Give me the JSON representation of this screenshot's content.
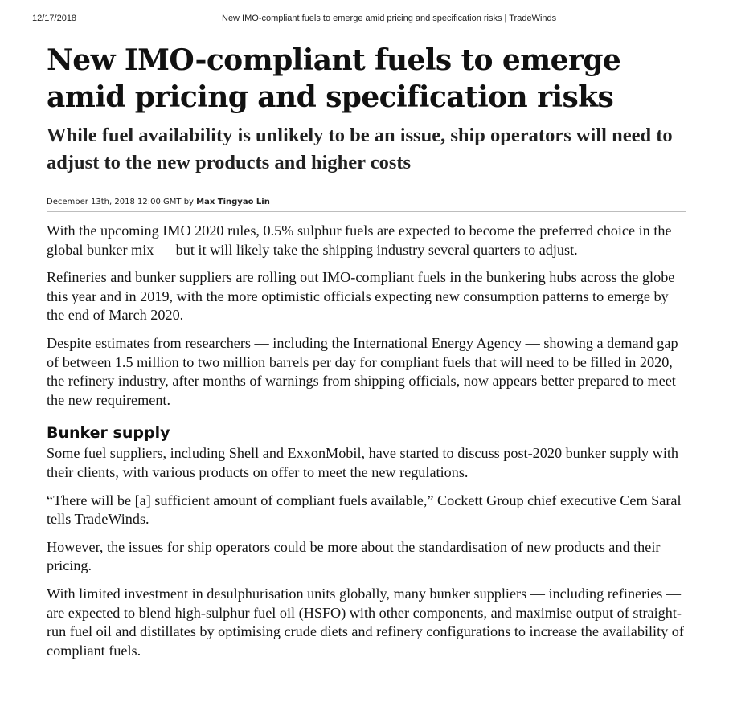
{
  "print_header": {
    "date": "12/17/2018",
    "page_title": "New IMO-compliant fuels to emerge amid pricing and specification risks | TradeWinds"
  },
  "article": {
    "headline": "New IMO-compliant fuels to emerge amid pricing and specification risks",
    "subheadline": "While fuel availability is unlikely to be an issue, ship operators will need to adjust to the new products and higher costs",
    "byline": {
      "date": "December 13th, 2018 12:00 GMT",
      "by": "by",
      "author": "Max Tingyao Lin"
    },
    "paragraphs_intro": [
      "With the upcoming IMO 2020 rules, 0.5% sulphur fuels are expected to become the preferred choice in the global bunker mix — but it will likely take the shipping industry several quarters to adjust.",
      "Refineries and bunker suppliers are rolling out IMO-compliant fuels in the bunkering hubs across the globe this year and in 2019, with the more optimistic officials expecting new consumption patterns to emerge by the end of March 2020.",
      "Despite estimates from researchers — including the International Energy Agency — showing a demand gap of between 1.5 million to two million barrels per day for compliant fuels that will need to be filled in 2020, the refinery industry, after months of warnings from shipping officials, now appears better prepared to meet the new requirement."
    ],
    "section_heading": "Bunker supply",
    "paragraphs_section": [
      "Some fuel suppliers, including Shell and ExxonMobil, have started to discuss post-2020 bunker supply with their clients, with various products on offer to meet the new regulations.",
      "“There will be [a] sufficient amount of compliant fuels available,” Cockett Group chief executive Cem Saral tells TradeWinds.",
      "However, the issues for ship operators could be more about the standardisation of new products and their pricing.",
      "With limited investment in desulphurisation units globally, many bunker suppliers — including refineries — are expected to blend high-sulphur fuel oil (HSFO) with other components, and maximise output of straight-run fuel oil and distillates by optimising crude diets and refinery configurations to increase the availability of compliant fuels."
    ]
  }
}
